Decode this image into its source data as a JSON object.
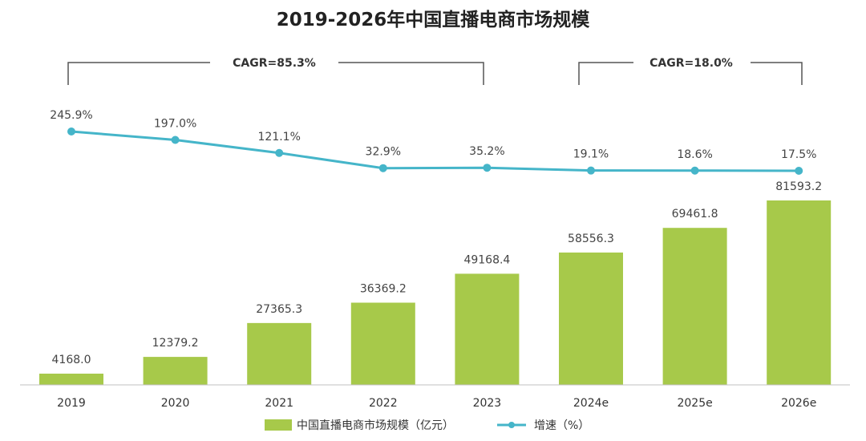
{
  "title": "2019-2026年中国直播电商市场规模",
  "annotations": [
    {
      "label": "CAGR=85.3%"
    },
    {
      "label": "CAGR=18.0%"
    }
  ],
  "legend": {
    "bar_label": "中国直播电商市场规模（亿元）",
    "line_label": "增速（%）"
  },
  "colors": {
    "bar": "#a7c94a",
    "line": "#45b5c9",
    "axis": "#c0c0c0",
    "bracket": "#555555"
  },
  "chart_data": {
    "type": "bar",
    "title": "2019-2026年中国直播电商市场规模",
    "categories": [
      "2019",
      "2020",
      "2021",
      "2022",
      "2023",
      "2024e",
      "2025e",
      "2026e"
    ],
    "series": [
      {
        "name": "中国直播电商市场规模（亿元）",
        "type": "bar",
        "values": [
          4168.0,
          12379.2,
          27365.3,
          36369.2,
          49168.4,
          58556.3,
          69461.8,
          81593.2
        ],
        "labels": [
          "4168.0",
          "12379.2",
          "27365.3",
          "36369.2",
          "49168.4",
          "58556.3",
          "69461.8",
          "81593.2"
        ]
      },
      {
        "name": "增速（%）",
        "type": "line",
        "values": [
          245.9,
          197.0,
          121.1,
          32.9,
          35.2,
          19.1,
          18.6,
          17.5
        ],
        "labels": [
          "245.9%",
          "197.0%",
          "121.1%",
          "32.9%",
          "35.2%",
          "19.1%",
          "18.6%",
          "17.5%"
        ]
      }
    ],
    "legend_position": "bottom",
    "grid": false
  }
}
